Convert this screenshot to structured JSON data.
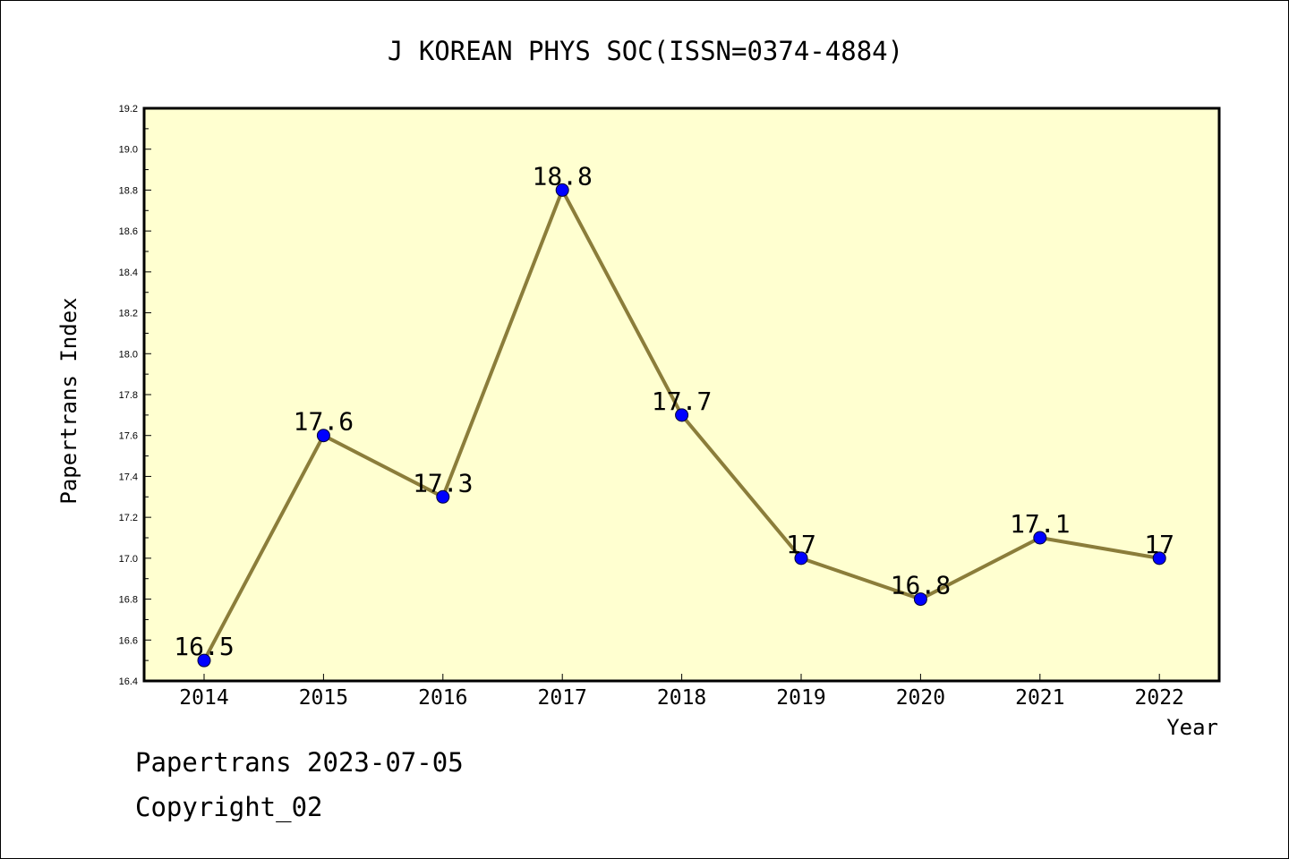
{
  "chart_data": {
    "type": "line",
    "title": "J KOREAN PHYS SOC(ISSN=0374-4884)",
    "xlabel": "Year",
    "ylabel": "Papertrans Index",
    "categories": [
      "2014",
      "2015",
      "2016",
      "2017",
      "2018",
      "2019",
      "2020",
      "2021",
      "2022"
    ],
    "series": [
      {
        "values": [
          16.5,
          17.6,
          17.3,
          18.8,
          17.7,
          17.0,
          16.8,
          17.1,
          17.0
        ],
        "labels": [
          "16.5",
          "17.6",
          "17.3",
          "18.8",
          "17.7",
          "17",
          "16.8",
          "17.1",
          "17"
        ]
      }
    ],
    "ylim": [
      16.4,
      19.2
    ],
    "yticks": [
      "16.4",
      "16.6",
      "16.8",
      "17.0",
      "17.2",
      "17.4",
      "17.6",
      "17.8",
      "18.0",
      "18.2",
      "18.4",
      "18.6",
      "18.8",
      "19.0",
      "19.2"
    ],
    "grid": false,
    "colors": {
      "plot_background": "#FFFFD0",
      "line": "#8B7D3A",
      "marker": "#0000FF"
    }
  },
  "footer": {
    "date_line": "Papertrans 2023-07-05",
    "copyright": "Copyright_02"
  }
}
